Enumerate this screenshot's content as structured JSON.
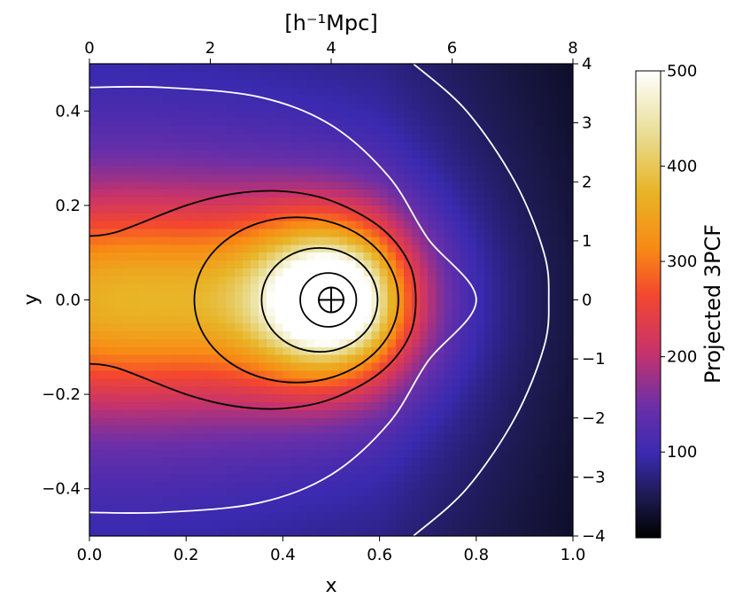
{
  "chart_data": {
    "type": "heatmap",
    "title": "",
    "xlabel": "x",
    "ylabel": "y",
    "top_xlabel": "[h⁻¹Mpc]",
    "xlim": [
      0.0,
      1.0
    ],
    "ylim": [
      -0.5,
      0.5
    ],
    "top_xlim": [
      0,
      8
    ],
    "right_ylim": [
      -4,
      4
    ],
    "x_ticks": [
      0.0,
      0.2,
      0.4,
      0.6,
      0.8,
      1.0
    ],
    "x_tick_labels": [
      "0.0",
      "0.2",
      "0.4",
      "0.6",
      "0.8",
      "1.0"
    ],
    "y_ticks": [
      0.4,
      0.2,
      0.0,
      -0.2,
      -0.4
    ],
    "y_tick_labels": [
      "0.4",
      "0.2",
      "0.0",
      "−0.2",
      "−0.4"
    ],
    "top_ticks": [
      0,
      2,
      4,
      6,
      8
    ],
    "top_tick_labels": [
      "0",
      "2",
      "4",
      "6",
      "8"
    ],
    "right_ticks": [
      4,
      3,
      2,
      1,
      0,
      -1,
      -2,
      -3,
      -4
    ],
    "right_tick_labels": [
      "4",
      "3",
      "2",
      "1",
      "0",
      "−1",
      "−2",
      "−3",
      "−4"
    ],
    "colorbar": {
      "label": "Projected 3PCF",
      "range": [
        10,
        500
      ],
      "ticks": [
        500,
        400,
        300,
        200,
        100
      ],
      "tick_labels": [
        "500",
        "400",
        "300",
        "200",
        "100"
      ],
      "colormap": "CMRmap"
    },
    "marker": {
      "x": 0.5,
      "y": 0.0,
      "symbol": "circle-cross"
    },
    "contours": [
      {
        "color": "#ffffff",
        "shape": "open-curve",
        "points": [
          [
            0.0,
            0.45
          ],
          [
            0.15,
            0.45
          ],
          [
            0.35,
            0.43
          ],
          [
            0.5,
            0.37
          ],
          [
            0.62,
            0.26
          ],
          [
            0.7,
            0.13
          ],
          [
            0.8,
            0.0
          ],
          [
            0.7,
            -0.13
          ],
          [
            0.62,
            -0.26
          ],
          [
            0.5,
            -0.37
          ],
          [
            0.35,
            -0.43
          ],
          [
            0.15,
            -0.45
          ],
          [
            0.0,
            -0.45
          ]
        ]
      },
      {
        "color": "#ffffff",
        "shape": "open-curve",
        "points": [
          [
            0.67,
            0.5
          ],
          [
            0.78,
            0.4
          ],
          [
            0.88,
            0.25
          ],
          [
            0.94,
            0.1
          ],
          [
            0.95,
            0.0
          ],
          [
            0.94,
            -0.1
          ],
          [
            0.88,
            -0.25
          ],
          [
            0.78,
            -0.4
          ],
          [
            0.67,
            -0.5
          ]
        ]
      },
      {
        "color": "#000000",
        "shape": "open-curve",
        "points": [
          [
            0.0,
            0.135
          ],
          [
            0.06,
            0.145
          ],
          [
            0.2,
            0.2
          ],
          [
            0.3,
            0.225
          ],
          [
            0.4,
            0.23
          ],
          [
            0.5,
            0.21
          ],
          [
            0.6,
            0.155
          ],
          [
            0.66,
            0.08
          ],
          [
            0.675,
            0.0
          ],
          [
            0.66,
            -0.08
          ],
          [
            0.6,
            -0.155
          ],
          [
            0.5,
            -0.21
          ],
          [
            0.4,
            -0.23
          ],
          [
            0.3,
            -0.225
          ],
          [
            0.2,
            -0.2
          ],
          [
            0.06,
            -0.145
          ],
          [
            0.0,
            -0.135
          ]
        ]
      },
      {
        "color": "#000000",
        "shape": "ellipse",
        "cx": 0.428,
        "cy": 0.0,
        "rx": 0.211,
        "ry": 0.175
      },
      {
        "color": "#000000",
        "shape": "ellipse",
        "cx": 0.476,
        "cy": 0.0,
        "rx": 0.12,
        "ry": 0.11
      },
      {
        "color": "#000000",
        "shape": "ellipse",
        "cx": 0.494,
        "cy": 0.0,
        "rx": 0.058,
        "ry": 0.057
      }
    ]
  }
}
